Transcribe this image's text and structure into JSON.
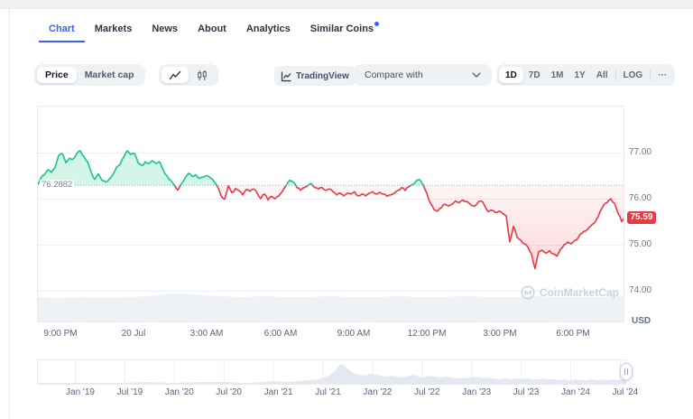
{
  "tabs": [
    {
      "label": "Chart",
      "active": true,
      "badge_dot": false
    },
    {
      "label": "Markets",
      "active": false,
      "badge_dot": false
    },
    {
      "label": "News",
      "active": false,
      "badge_dot": false
    },
    {
      "label": "About",
      "active": false,
      "badge_dot": false
    },
    {
      "label": "Analytics",
      "active": false,
      "badge_dot": false
    },
    {
      "label": "Similar Coins",
      "active": false,
      "badge_dot": true
    }
  ],
  "toolbar": {
    "metric_toggle": {
      "options": [
        "Price",
        "Market cap"
      ],
      "selected": "Price"
    },
    "chart_type_toggle": {
      "options": [
        "line-chart",
        "candlestick-chart"
      ],
      "selected": "line-chart"
    },
    "tradingview_label": "TradingView",
    "compare_label": "Compare with",
    "ranges": {
      "options": [
        "1D",
        "7D",
        "1M",
        "1Y",
        "All"
      ],
      "selected": "1D"
    },
    "log_label": "LOG",
    "more_label": "···"
  },
  "watermark": {
    "text": "CoinMarketCap"
  },
  "chart_data": {
    "type": "line",
    "title": "",
    "y_axis": {
      "tick_labels": [
        "77.00",
        "76.00",
        "75.00",
        "74.00"
      ],
      "tick_values": [
        77,
        76,
        75,
        74
      ],
      "unit": "USD",
      "range": [
        73.9,
        77.7
      ]
    },
    "x_axis": {
      "labels": [
        "9:00 PM",
        "20 Jul",
        "3:00 AM",
        "6:00 AM",
        "9:00 AM",
        "12:00 PM",
        "3:00 PM",
        "6:00 PM"
      ]
    },
    "baseline": {
      "value": 76.2882,
      "label": "76.2882"
    },
    "last_price": {
      "value": 75.59,
      "label": "75.59"
    },
    "colors": {
      "up": "#16c784",
      "down": "#ea3943"
    },
    "series": [
      {
        "name": "price",
        "x_start": 41,
        "x_step": 4,
        "values": [
          76.3,
          76.44,
          76.52,
          76.63,
          76.57,
          76.68,
          76.94,
          76.98,
          76.78,
          76.88,
          76.86,
          76.98,
          77.04,
          76.92,
          76.8,
          76.58,
          76.42,
          76.54,
          76.4,
          76.36,
          76.42,
          76.52,
          76.68,
          76.74,
          76.9,
          77.04,
          76.96,
          76.98,
          76.78,
          76.72,
          76.8,
          76.76,
          76.82,
          76.76,
          76.8,
          76.62,
          76.5,
          76.4,
          76.3,
          76.19,
          76.33,
          76.45,
          76.55,
          76.48,
          76.52,
          76.44,
          76.47,
          76.5,
          76.45,
          76.38,
          76.26,
          76.06,
          75.99,
          76.28,
          76.13,
          76.22,
          76.17,
          76.08,
          76.2,
          76.16,
          76.21,
          76.12,
          76.0,
          76.1,
          75.97,
          76.05,
          76.0,
          76.06,
          76.16,
          76.28,
          76.4,
          76.36,
          76.24,
          76.18,
          76.24,
          76.28,
          76.33,
          76.24,
          76.21,
          76.24,
          76.18,
          76.21,
          76.15,
          76.08,
          76.12,
          76.06,
          76.12,
          76.1,
          76.15,
          76.06,
          76.1,
          76.06,
          76.12,
          76.15,
          76.1,
          76.14,
          76.1,
          76.05,
          76.08,
          76.12,
          76.18,
          76.24,
          76.18,
          76.26,
          76.31,
          76.38,
          76.42,
          76.3,
          76.12,
          75.9,
          75.76,
          75.73,
          75.8,
          75.88,
          75.84,
          75.88,
          75.95,
          75.92,
          75.97,
          75.94,
          75.88,
          75.84,
          75.9,
          75.95,
          75.85,
          75.72,
          75.75,
          75.7,
          75.73,
          75.68,
          75.62,
          75.06,
          75.4,
          75.16,
          75.1,
          75.02,
          74.95,
          74.8,
          74.48,
          74.85,
          74.88,
          74.82,
          74.87,
          74.8,
          74.75,
          74.9,
          75.0,
          75.06,
          75.02,
          75.09,
          75.16,
          75.25,
          75.3,
          75.38,
          75.45,
          75.55,
          75.72,
          75.86,
          75.92,
          76.0,
          75.9,
          75.68,
          75.5,
          75.59
        ]
      }
    ],
    "volume_profile": [
      [
        0,
        27
      ],
      [
        25,
        26
      ],
      [
        50,
        27
      ],
      [
        75,
        26
      ],
      [
        100,
        27
      ],
      [
        125,
        28
      ],
      [
        140,
        30
      ],
      [
        155,
        31
      ],
      [
        170,
        30
      ],
      [
        185,
        29
      ],
      [
        200,
        28
      ],
      [
        225,
        27
      ],
      [
        250,
        28
      ],
      [
        275,
        27
      ],
      [
        300,
        27
      ],
      [
        325,
        28
      ],
      [
        350,
        27
      ],
      [
        375,
        27
      ],
      [
        400,
        28
      ],
      [
        425,
        27
      ],
      [
        450,
        27
      ],
      [
        475,
        28
      ],
      [
        500,
        27
      ],
      [
        525,
        27
      ],
      [
        550,
        28
      ],
      [
        575,
        27
      ],
      [
        600,
        27
      ],
      [
        625,
        27
      ],
      [
        651,
        28
      ]
    ],
    "navigator": {
      "date_labels": [
        "Jan '19",
        "Jul '19",
        "Jan '20",
        "Jul '20",
        "Jan '21",
        "Jul '21",
        "Jan '22",
        "Jul '22",
        "Jan '23",
        "Jul '23",
        "Jan '24",
        "Jul '24"
      ],
      "area": [
        [
          0,
          1
        ],
        [
          30,
          1
        ],
        [
          60,
          1
        ],
        [
          90,
          1
        ],
        [
          120,
          2
        ],
        [
          150,
          1
        ],
        [
          180,
          2
        ],
        [
          210,
          2
        ],
        [
          230,
          1
        ],
        [
          250,
          2
        ],
        [
          262,
          3
        ],
        [
          275,
          2
        ],
        [
          288,
          3
        ],
        [
          300,
          4
        ],
        [
          310,
          5
        ],
        [
          318,
          7
        ],
        [
          324,
          10
        ],
        [
          329,
          14
        ],
        [
          333,
          19
        ],
        [
          336,
          22
        ],
        [
          340,
          20
        ],
        [
          344,
          16
        ],
        [
          348,
          13
        ],
        [
          352,
          11
        ],
        [
          357,
          10
        ],
        [
          362,
          9
        ],
        [
          368,
          11
        ],
        [
          374,
          10
        ],
        [
          380,
          9
        ],
        [
          386,
          8
        ],
        [
          392,
          9
        ],
        [
          398,
          8
        ],
        [
          404,
          7
        ],
        [
          410,
          9
        ],
        [
          416,
          10
        ],
        [
          422,
          8
        ],
        [
          428,
          7
        ],
        [
          434,
          9
        ],
        [
          440,
          8
        ],
        [
          446,
          7
        ],
        [
          452,
          8
        ],
        [
          458,
          7
        ],
        [
          464,
          6
        ],
        [
          470,
          7
        ],
        [
          476,
          6
        ],
        [
          482,
          8
        ],
        [
          488,
          7
        ],
        [
          494,
          6
        ],
        [
          500,
          7
        ],
        [
          506,
          6
        ],
        [
          512,
          5
        ],
        [
          518,
          6
        ],
        [
          524,
          5
        ],
        [
          530,
          6
        ],
        [
          536,
          5
        ],
        [
          542,
          6
        ],
        [
          548,
          5
        ],
        [
          554,
          5
        ],
        [
          560,
          6
        ],
        [
          566,
          5
        ],
        [
          572,
          5
        ],
        [
          578,
          4
        ],
        [
          584,
          5
        ],
        [
          590,
          4
        ],
        [
          596,
          5
        ],
        [
          602,
          4
        ],
        [
          608,
          4
        ],
        [
          614,
          5
        ],
        [
          620,
          4
        ],
        [
          626,
          5
        ],
        [
          632,
          4
        ],
        [
          638,
          5
        ],
        [
          644,
          4
        ],
        [
          650,
          5
        ],
        [
          651,
          5
        ]
      ]
    }
  }
}
